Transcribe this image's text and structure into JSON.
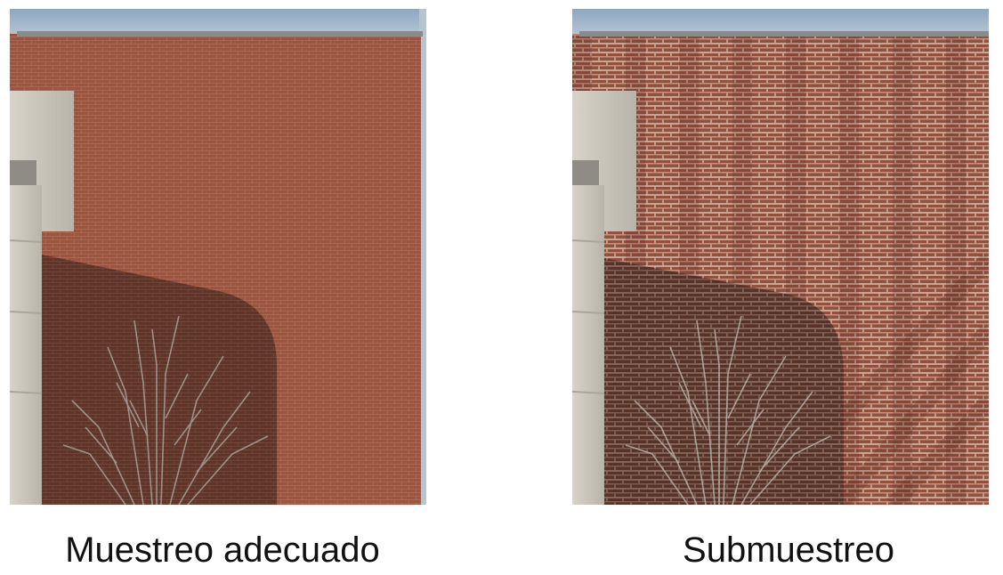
{
  "panels": [
    {
      "caption": "Muestreo adecuado",
      "colors": {
        "sky": "#9fb3c9",
        "brick": "#9a5540",
        "brick_shade": "#5b3327",
        "mortar": "#a8826f",
        "concrete": "#c9c6bd",
        "branches": "#a8a29a"
      }
    },
    {
      "caption": "Submuestreo",
      "colors": {
        "sky": "#9fb3c9",
        "brick": "#93503c",
        "brick_shade": "#523026",
        "mortar": "#e0c9bd",
        "concrete": "#c9c6bd",
        "branches": "#b7b2aa"
      }
    }
  ]
}
